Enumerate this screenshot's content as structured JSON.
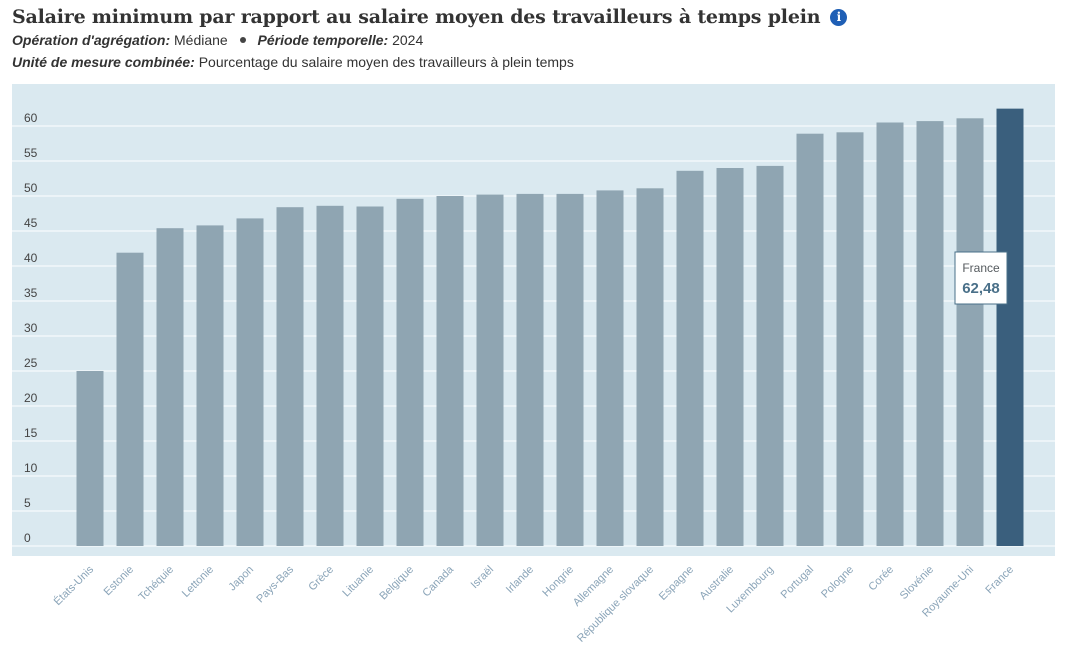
{
  "header": {
    "title": "Salaire minimum par rapport au salaire moyen des travailleurs à temps plein",
    "info_icon": "info-icon",
    "aggregation_key": "Opération d'agrégation:",
    "aggregation_value": "Médiane",
    "period_key": "Période temporelle:",
    "period_value": "2024",
    "unit_key": "Unité de mesure combinée:",
    "unit_value": "Pourcentage du salaire moyen des travailleurs à plein temps"
  },
  "tooltip": {
    "name": "France",
    "value": "62,48"
  },
  "colors": {
    "bar": "#8fa5b2",
    "highlight": "#3a5f7d",
    "plot_bg": "#dae9f0",
    "grid": "#ffffff",
    "axis_label": "#8aa4b8"
  },
  "chart_data": {
    "type": "bar",
    "title": "Salaire minimum par rapport au salaire moyen des travailleurs à temps plein",
    "ylim": [
      0,
      62
    ],
    "yticks": [
      0,
      5,
      10,
      15,
      20,
      25,
      30,
      35,
      40,
      45,
      50,
      55,
      60
    ],
    "grid": true,
    "highlighted": "France",
    "categories": [
      "États-Unis",
      "Estonie",
      "Tchéquie",
      "Lettonie",
      "Japon",
      "Pays-Bas",
      "Grèce",
      "Lituanie",
      "Belgique",
      "Canada",
      "Israël",
      "Irlande",
      "Hongrie",
      "Allemagne",
      "République slovaque",
      "Espagne",
      "Australie",
      "Luxembourg",
      "Portugal",
      "Pologne",
      "Corée",
      "Slovénie",
      "Royaume-Uni",
      "France"
    ],
    "values": [
      25.0,
      41.9,
      45.4,
      45.8,
      46.8,
      48.4,
      48.6,
      48.5,
      49.6,
      50.0,
      50.2,
      50.3,
      50.3,
      50.8,
      51.1,
      53.6,
      54.0,
      54.3,
      58.9,
      59.1,
      60.5,
      60.7,
      61.1,
      62.48
    ]
  }
}
